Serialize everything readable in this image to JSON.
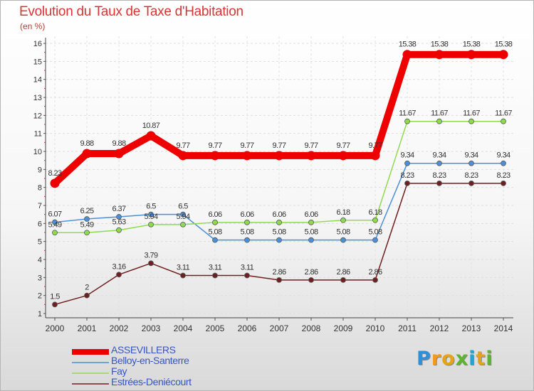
{
  "chart_data": {
    "type": "line",
    "title": "Evolution du Taux de Taxe d'Habitation",
    "subtitle": "(en %)",
    "xlabel": "",
    "ylabel": "",
    "ylim": [
      1,
      16
    ],
    "yticks": [
      1,
      2,
      3,
      4,
      5,
      6,
      7,
      8,
      9,
      10,
      11,
      12,
      13,
      14,
      15,
      16
    ],
    "grid": true,
    "legend_position": "bottom-left",
    "x": [
      2000,
      2001,
      2002,
      2003,
      2004,
      2005,
      2006,
      2007,
      2008,
      2009,
      2010,
      2011,
      2012,
      2013,
      2014
    ],
    "series": [
      {
        "name": "ASSEVILLERS",
        "color": "#ee0000",
        "values": [
          8.23,
          9.88,
          9.88,
          10.87,
          9.77,
          9.77,
          9.77,
          9.77,
          9.77,
          9.77,
          9.77,
          15.38,
          15.38,
          15.38,
          15.38
        ],
        "labels": [
          "8.23",
          "9.88",
          "9.88",
          "10.87",
          "9.77",
          "9.77",
          "9.77",
          "9.77",
          "9.77",
          "9.77",
          "9.77",
          "15.38",
          "15.38",
          "15.38",
          "15.38"
        ]
      },
      {
        "name": "Belloy-en-Santerre",
        "color": "#4a90d9",
        "values": [
          6.07,
          6.25,
          6.37,
          6.5,
          6.5,
          5.08,
          5.08,
          5.08,
          5.08,
          5.08,
          5.08,
          9.34,
          9.34,
          9.34,
          9.34
        ],
        "labels": [
          "6.07",
          "6.25",
          "6.37",
          "6.5",
          "6.5",
          "5.08",
          "5.08",
          "5.08",
          "5.08",
          "5.08",
          "5.08",
          "9.34",
          "9.34",
          "9.34",
          "9.34"
        ]
      },
      {
        "name": "Fay",
        "color": "#8fdb4f",
        "values": [
          5.49,
          5.49,
          5.63,
          5.94,
          5.94,
          6.06,
          6.06,
          6.06,
          6.06,
          6.18,
          6.18,
          11.67,
          11.67,
          11.67,
          11.67
        ],
        "labels": [
          "5.49",
          "5.49",
          "5.63",
          "5.94",
          "5.94",
          "6.06",
          "6.06",
          "6.06",
          "6.06",
          "6.18",
          "6.18",
          "11.67",
          "11.67",
          "11.67",
          "11.67"
        ]
      },
      {
        "name": "Estrées-Deniécourt",
        "color": "#6e1f1f",
        "values": [
          1.5,
          2,
          3.16,
          3.79,
          3.11,
          3.11,
          3.11,
          2.86,
          2.86,
          2.86,
          2.86,
          8.23,
          8.23,
          8.23,
          8.23
        ],
        "labels": [
          "1.5",
          "2",
          "3.16",
          "3.79",
          "3.11",
          "3.11",
          "3.11",
          "2.86",
          "2.86",
          "2.86",
          "2.86",
          "8.23",
          "8.23",
          "8.23",
          "8.23"
        ]
      }
    ]
  },
  "brand": {
    "letters": [
      "P",
      "r",
      "o",
      "x",
      "i",
      "t",
      "i"
    ],
    "colors": [
      "#2f8fd8",
      "#f29a1d",
      "#e8a418",
      "#5cb531",
      "#1fa5d6",
      "#e6a21a",
      "#5cb531"
    ]
  }
}
